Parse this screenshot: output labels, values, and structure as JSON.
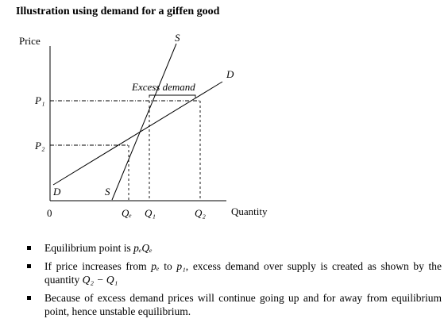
{
  "title": "Illustration using demand for a giffen good",
  "diagram": {
    "y_axis_label": "Price",
    "x_axis_label": "Quantity",
    "origin_label": "0",
    "price_labels": {
      "p1": "P₁",
      "p2": "P₂"
    },
    "quantity_labels": {
      "qe": "Qₑ",
      "q1": "Q₁",
      "q2": "Q₂"
    },
    "curve_labels": {
      "supply_top": "S",
      "supply_bottom": "S",
      "demand_top": "D",
      "demand_bottom": "D"
    },
    "annotation": "Excess demand"
  },
  "bullets": {
    "b1_prefix": "Equilibrium point is ",
    "b1_math": "pₑQₑ",
    "b2_text1": "If price increases from ",
    "b2_pe": "pₑ",
    "b2_text2": " to ",
    "b2_p1": "p₁",
    "b2_text3": ", excess demand over supply is created as shown by the quantity ",
    "b2_math": "Q₂ − Q₁",
    "b3_text": "Because of excess demand prices will continue going up and for away from equilibrium point, hence unstable equilibrium."
  }
}
